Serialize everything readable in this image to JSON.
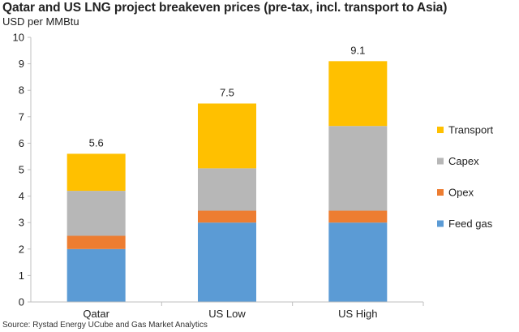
{
  "title": "Qatar and US LNG project breakeven prices (pre-tax, incl. transport to Asia)",
  "unit_label": "USD per MMBtu",
  "source": "Source: Rystad Energy UCube and Gas Market Analytics",
  "chart_data": {
    "type": "bar",
    "stacked": true,
    "categories": [
      "Qatar",
      "US Low",
      "US High"
    ],
    "series": [
      {
        "name": "Feed gas",
        "color": "#5b9bd5",
        "values": [
          2.0,
          3.0,
          3.0
        ]
      },
      {
        "name": "Opex",
        "color": "#ed7d31",
        "values": [
          0.5,
          0.45,
          0.45
        ]
      },
      {
        "name": "Capex",
        "color": "#b7b7b7",
        "values": [
          1.7,
          1.6,
          3.2
        ]
      },
      {
        "name": "Transport",
        "color": "#ffc000",
        "values": [
          1.4,
          2.45,
          2.45
        ]
      }
    ],
    "totals": [
      "5.6",
      "7.5",
      "9.1"
    ],
    "ylim": [
      0,
      10
    ],
    "yticks": [
      "0",
      "1",
      "2",
      "3",
      "4",
      "5",
      "6",
      "7",
      "8",
      "9",
      "10"
    ],
    "legend_order": [
      "Transport",
      "Capex",
      "Opex",
      "Feed gas"
    ],
    "legend_position": "right",
    "grid": false
  }
}
